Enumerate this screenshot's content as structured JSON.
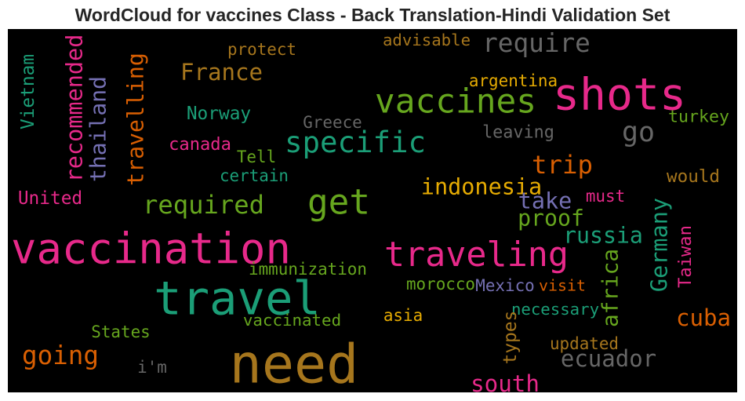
{
  "chart_data": {
    "type": "wordcloud",
    "title": "WordCloud for vaccines Class - Back Translation-Hindi Validation Set",
    "background": "#000000",
    "colormap": "Dark2",
    "words": [
      {
        "text": "need",
        "color": "#a6761d"
      },
      {
        "text": "vaccination",
        "color": "#e7298a"
      },
      {
        "text": "travel",
        "color": "#1b9e77"
      },
      {
        "text": "shots",
        "color": "#e7298a"
      },
      {
        "text": "vaccines",
        "color": "#66a61e"
      },
      {
        "text": "traveling",
        "color": "#e7298a"
      },
      {
        "text": "get",
        "color": "#66a61e"
      },
      {
        "text": "specific",
        "color": "#1b9e77"
      },
      {
        "text": "require",
        "color": "#666666"
      },
      {
        "text": "required",
        "color": "#66a61e"
      },
      {
        "text": "going",
        "color": "#d95f02"
      },
      {
        "text": "recommended",
        "color": "#e7298a"
      },
      {
        "text": "travelling",
        "color": "#d95f02"
      },
      {
        "text": "thailand",
        "color": "#7570b3"
      },
      {
        "text": "France",
        "color": "#a6761d"
      },
      {
        "text": "go",
        "color": "#666666"
      },
      {
        "text": "trip",
        "color": "#d95f02"
      },
      {
        "text": "indonesia",
        "color": "#e6ab02"
      },
      {
        "text": "ecuador",
        "color": "#666666"
      },
      {
        "text": "proof",
        "color": "#66a61e"
      },
      {
        "text": "take",
        "color": "#7570b3"
      },
      {
        "text": "russia",
        "color": "#1b9e77"
      },
      {
        "text": "Germany",
        "color": "#1b9e77"
      },
      {
        "text": "africa",
        "color": "#66a61e"
      },
      {
        "text": "cuba",
        "color": "#d95f02"
      },
      {
        "text": "south",
        "color": "#e7298a"
      },
      {
        "text": "protect",
        "color": "#a6761d"
      },
      {
        "text": "advisable",
        "color": "#a6761d"
      },
      {
        "text": "argentina",
        "color": "#e6ab02"
      },
      {
        "text": "turkey",
        "color": "#66a61e"
      },
      {
        "text": "Norway",
        "color": "#1b9e77"
      },
      {
        "text": "Greece",
        "color": "#666666"
      },
      {
        "text": "leaving",
        "color": "#666666"
      },
      {
        "text": "canada",
        "color": "#e7298a"
      },
      {
        "text": "Tell",
        "color": "#66a61e"
      },
      {
        "text": "certain",
        "color": "#1b9e77"
      },
      {
        "text": "would",
        "color": "#a6761d"
      },
      {
        "text": "must",
        "color": "#e7298a"
      },
      {
        "text": "United",
        "color": "#e7298a"
      },
      {
        "text": "Vietnam",
        "color": "#1b9e77"
      },
      {
        "text": "Taiwan",
        "color": "#e7298a"
      },
      {
        "text": "immunization",
        "color": "#66a61e"
      },
      {
        "text": "morocco",
        "color": "#66a61e"
      },
      {
        "text": "Mexico",
        "color": "#7570b3"
      },
      {
        "text": "visit",
        "color": "#d95f02"
      },
      {
        "text": "necessary",
        "color": "#1b9e77"
      },
      {
        "text": "vaccinated",
        "color": "#66a61e"
      },
      {
        "text": "asia",
        "color": "#e6ab02"
      },
      {
        "text": "types",
        "color": "#a6761d"
      },
      {
        "text": "updated",
        "color": "#a6761d"
      },
      {
        "text": "States",
        "color": "#66a61e"
      },
      {
        "text": "i'm",
        "color": "#666666"
      }
    ]
  }
}
